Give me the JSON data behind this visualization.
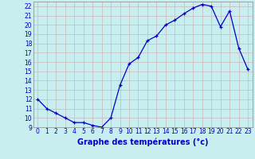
{
  "hours": [
    0,
    1,
    2,
    3,
    4,
    5,
    6,
    7,
    8,
    9,
    10,
    11,
    12,
    13,
    14,
    15,
    16,
    17,
    18,
    19,
    20,
    21,
    22,
    23
  ],
  "temps": [
    12.0,
    11.0,
    10.5,
    10.0,
    9.5,
    9.5,
    9.2,
    9.0,
    10.0,
    13.5,
    15.8,
    16.5,
    18.3,
    18.8,
    20.0,
    20.5,
    21.2,
    21.8,
    22.2,
    22.0,
    19.8,
    21.5,
    17.5,
    15.2
  ],
  "line_color": "#0000cc",
  "marker_color": "#0000cc",
  "bg_color": "#c8eef0",
  "grid_color": "#c8b8b8",
  "label_color": "#0000cc",
  "ylim": [
    9,
    22.5
  ],
  "xlim": [
    -0.5,
    23.5
  ],
  "yticks": [
    9,
    10,
    11,
    12,
    13,
    14,
    15,
    16,
    17,
    18,
    19,
    20,
    21,
    22
  ],
  "xticks": [
    0,
    1,
    2,
    3,
    4,
    5,
    6,
    7,
    8,
    9,
    10,
    11,
    12,
    13,
    14,
    15,
    16,
    17,
    18,
    19,
    20,
    21,
    22,
    23
  ],
  "xlabel": "Graphe des températures (°c)",
  "xlabel_fontsize": 7,
  "tick_fontsize": 5.5
}
